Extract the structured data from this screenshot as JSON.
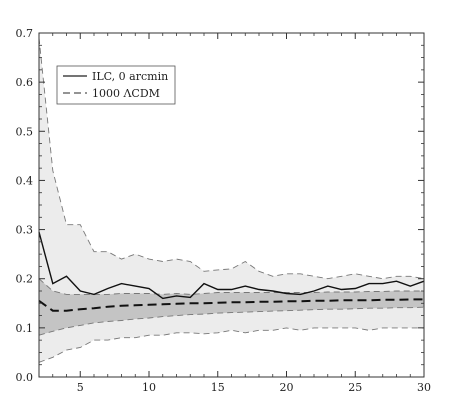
{
  "chart_data": {
    "type": "line",
    "xlim": [
      2,
      30
    ],
    "ylim": [
      0.0,
      0.7
    ],
    "xticks": [
      5,
      10,
      15,
      20,
      25,
      30
    ],
    "yticks": [
      0.0,
      0.1,
      0.2,
      0.3,
      0.4,
      0.5,
      0.6,
      0.7
    ],
    "xtick_labels": [
      "5",
      "10",
      "15",
      "20",
      "25",
      "30"
    ],
    "ytick_labels": [
      "0.0",
      "0.1",
      "0.2",
      "0.3",
      "0.4",
      "0.5",
      "0.6",
      "0.7"
    ],
    "grid": false,
    "legend": {
      "placement": "top-left",
      "entries": [
        "ILC, 0 arcmin",
        "1000 ΛCDM"
      ]
    },
    "x": [
      2,
      3,
      4,
      5,
      6,
      7,
      8,
      9,
      10,
      11,
      12,
      13,
      14,
      15,
      16,
      17,
      18,
      19,
      20,
      21,
      22,
      23,
      24,
      25,
      26,
      27,
      28,
      29,
      30
    ],
    "series": [
      {
        "name": "ILC, 0 arcmin",
        "style": "solid",
        "values": [
          0.295,
          0.19,
          0.205,
          0.175,
          0.168,
          0.18,
          0.19,
          0.185,
          0.18,
          0.16,
          0.165,
          0.162,
          0.19,
          0.178,
          0.178,
          0.185,
          0.178,
          0.175,
          0.17,
          0.168,
          0.175,
          0.185,
          0.178,
          0.18,
          0.19,
          0.19,
          0.195,
          0.185,
          0.195
        ]
      },
      {
        "name": "1000 ΛCDM",
        "style": "dashed",
        "values": [
          0.155,
          0.135,
          0.135,
          0.138,
          0.14,
          0.143,
          0.145,
          0.146,
          0.147,
          0.148,
          0.149,
          0.15,
          0.15,
          0.151,
          0.152,
          0.152,
          0.153,
          0.153,
          0.154,
          0.154,
          0.155,
          0.155,
          0.156,
          0.156,
          0.156,
          0.157,
          0.157,
          0.158,
          0.158
        ]
      }
    ],
    "bands": [
      {
        "role": "outer",
        "color": "#ececec",
        "upper": [
          0.69,
          0.42,
          0.31,
          0.31,
          0.255,
          0.255,
          0.24,
          0.25,
          0.24,
          0.235,
          0.24,
          0.235,
          0.215,
          0.218,
          0.22,
          0.235,
          0.215,
          0.205,
          0.21,
          0.21,
          0.205,
          0.2,
          0.205,
          0.21,
          0.205,
          0.2,
          0.205,
          0.205,
          0.2
        ],
        "lower": [
          0.03,
          0.04,
          0.055,
          0.06,
          0.075,
          0.075,
          0.08,
          0.08,
          0.085,
          0.085,
          0.09,
          0.09,
          0.088,
          0.09,
          0.095,
          0.09,
          0.095,
          0.095,
          0.1,
          0.095,
          0.1,
          0.1,
          0.1,
          0.1,
          0.095,
          0.1,
          0.1,
          0.1,
          0.1
        ]
      },
      {
        "role": "inner",
        "color": "#c4c4c4",
        "upper": [
          0.2,
          0.175,
          0.168,
          0.168,
          0.168,
          0.168,
          0.17,
          0.17,
          0.17,
          0.168,
          0.17,
          0.168,
          0.17,
          0.172,
          0.172,
          0.172,
          0.172,
          0.172,
          0.172,
          0.172,
          0.172,
          0.173,
          0.173,
          0.173,
          0.174,
          0.174,
          0.175,
          0.175,
          0.175
        ],
        "lower": [
          0.085,
          0.093,
          0.1,
          0.105,
          0.11,
          0.113,
          0.115,
          0.118,
          0.12,
          0.123,
          0.125,
          0.127,
          0.128,
          0.13,
          0.131,
          0.132,
          0.133,
          0.134,
          0.135,
          0.136,
          0.137,
          0.138,
          0.138,
          0.139,
          0.14,
          0.14,
          0.141,
          0.141,
          0.142
        ]
      }
    ]
  }
}
